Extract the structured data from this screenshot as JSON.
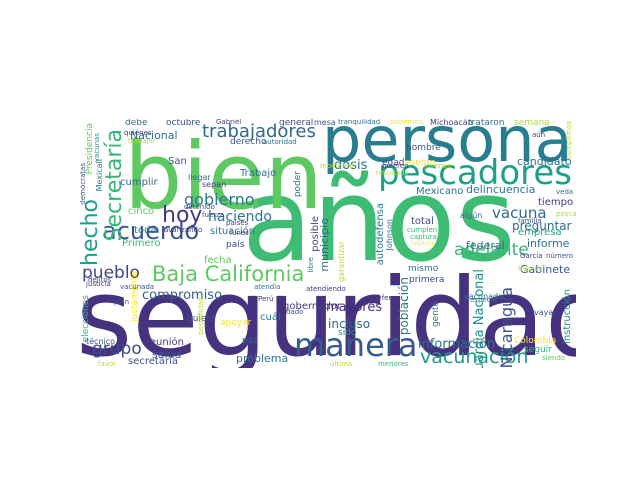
{
  "words": {
    "seguridad": "seguridad",
    "anos": "años",
    "bien": "bien",
    "persona": "persona",
    "pescadores": "pescadores",
    "manera": "manera",
    "baja_california": "Baja California",
    "trabajadores": "trabajadores",
    "acuerdo": "acuerdo",
    "hoy": "hoy",
    "hecho": "hecho",
    "secretaria_v": "Secretaría",
    "vacunacion": "vacunación",
    "adelante": "adelante",
    "gobierno": "gobierno",
    "pueblo": "pueblo",
    "grupo": "grupo",
    "informacion": "información",
    "vacuna": "vacuna",
    "nicaragua": "Nicaragua",
    "guardia_nacional": "Guardia Nacional",
    "haciendo": "haciendo",
    "compromiso": "compromiso",
    "dosis": "dosis",
    "mayores": "mayores",
    "incluso": "incluso",
    "poblacion": "población",
    "problema": "problema",
    "salud": "salud",
    "secretaria": "secretaría",
    "reunion": "reunión",
    "nacional": "Nacional",
    "candidato": "candidato",
    "delincuencia": "delincuencia",
    "mexicano": "Mexicano",
    "preguntar": "preguntar",
    "informe": "informe",
    "gabinete": "Gabinete",
    "empresa": "empresa",
    "federal": "federal",
    "tiempo": "tiempo",
    "municipio": "municipio",
    "gobernador": "gobernador",
    "autodefensa": "autodefensa",
    "fecha": "fecha",
    "toda": "toda",
    "cumplir": "cumplir",
    "cinco": "cinco",
    "primero": "Primero",
    "situacion": "situación",
    "san": "San",
    "trabajo": "Trabajo",
    "debe": "debe",
    "octubre": "octubre",
    "derecho": "derecho",
    "general": "general",
    "edad": "edad",
    "asunto": "asunto",
    "hombre": "hombre",
    "instruccion": "instrucción",
    "seguir": "seguir",
    "colombia": "Colombia",
    "total": "total",
    "mismo": "mismo",
    "primera": "primera",
    "posible": "posible",
    "cual": "cuál",
    "paz": "paz",
    "quiero": "quiero",
    "apoyar": "apoyar",
    "justamente": "justamente",
    "elecciones": "elecciones",
    "pais": "país",
    "semana": "semana",
    "sido": "sido",
    "gente": "gente",
    "tecnico": "técnico",
    "poder": "poder",
    "mesa": "mesa",
    "presidencia": "Presidencia",
    "mexicali": "Mexicali",
    "vaya": "vaya",
    "vacunado": "vacunado",
    "defensa": "Defensa",
    "especie": "especie",
    "michoacan": "Michoacán",
    "trataron": "trataron",
    "tranquilidad": "tranquilidad",
    "podemos": "podemos",
    "quienes": "quiénes",
    "gabriel": "Gabriel",
    "trabajar": "trabajar",
    "autoridad": "autoridad",
    "llegar": "llegar",
    "sepan": "sepan",
    "lunes": "lunes",
    "garantizar": "garantizar",
    "algun": "algún",
    "cumplen": "cumplen",
    "captura": "captura",
    "millon": "millón",
    "vacunada": "vacunada",
    "atendiendo": "atendiendo",
    "atendia": "atendía",
    "plan": "plan",
    "justicia": "justicia",
    "delitos": "delitos",
    "favor": "favor",
    "ultima": "última",
    "menores": "menores",
    "siendo": "siendo",
    "fiscalia": "fiscalía",
    "numero": "número",
    "garcia": "García",
    "peru": "Perú",
    "paises": "países",
    "detenido": "detenido",
    "fuerza": "fuerza",
    "avanzando": "avanzando",
    "veda": "veda",
    "pesca": "pesca",
    "aun": "aún",
    "democratas": "demócratas",
    "vacunas": "vacunas",
    "libre": "libre",
    "momento": "momento",
    "quieren": "quieren",
    "resultado": "resultado",
    "jovenes": "jóvenes",
    "posibilidad": "posibilidad",
    "atender": "atender",
    "dado": "dado",
    "familia": "familia",
    "cumplimos": "cumplimos",
    "johnson": "Johnson"
  }
}
